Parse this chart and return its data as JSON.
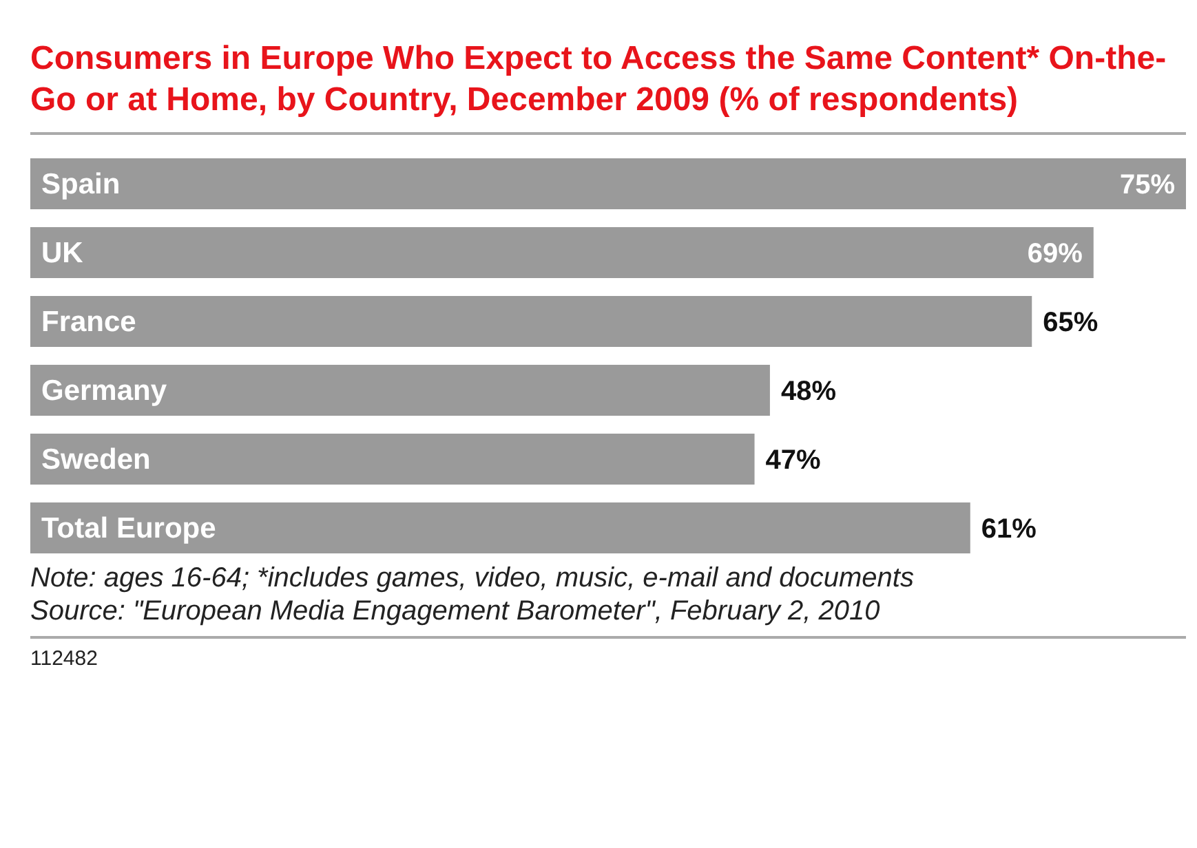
{
  "chart_data": {
    "type": "bar",
    "orientation": "horizontal",
    "title": "Consumers in Europe Who Expect to Access the Same Content* On-the-Go or at Home, by Country, December 2009 (% of respondents)",
    "categories": [
      "Spain",
      "UK",
      "France",
      "Germany",
      "Sweden",
      "Total Europe"
    ],
    "values": [
      75,
      69,
      65,
      48,
      47,
      61
    ],
    "value_labels": [
      "75%",
      "69%",
      "65%",
      "48%",
      "47%",
      "61%"
    ],
    "color": "#9a9a9a",
    "annotations": [
      "Note: ages 16-64; *includes games, video, music, e-mail and documents",
      "Source: \"European Media Engagement Barometer\", February 2, 2010",
      "112482"
    ]
  }
}
